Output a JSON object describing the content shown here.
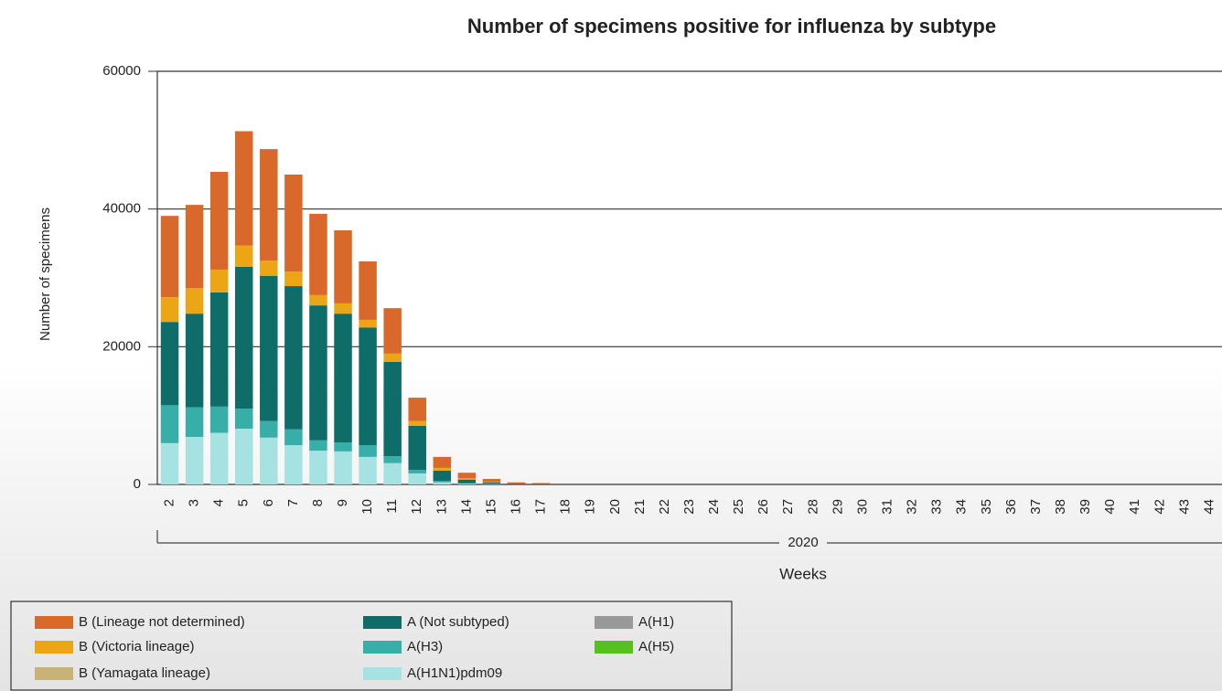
{
  "chart_data": {
    "type": "bar",
    "stacked": true,
    "title": "Number of specimens positive for influenza by subtype",
    "ylabel": "Number of specimens",
    "xlabel": "Weeks",
    "x_group": "2020",
    "categories": [
      "2",
      "3",
      "4",
      "5",
      "6",
      "7",
      "8",
      "9",
      "10",
      "11",
      "12",
      "13",
      "14",
      "15",
      "16",
      "17",
      "18",
      "19",
      "20",
      "21",
      "22",
      "23",
      "24",
      "25",
      "26",
      "27",
      "28",
      "29",
      "30",
      "31",
      "32",
      "33",
      "34",
      "35",
      "36",
      "37",
      "38",
      "39",
      "40",
      "41",
      "42",
      "43",
      "44"
    ],
    "ylim": [
      0,
      60000
    ],
    "yticks": [
      0,
      20000,
      40000,
      60000
    ],
    "grid": true,
    "series": [
      {
        "name": "B (Lineage not determined)",
        "color": "#d8692a",
        "values": [
          11800,
          12100,
          14200,
          16600,
          16200,
          14100,
          11800,
          10600,
          8500,
          6600,
          3400,
          1600,
          800,
          400,
          200,
          150,
          0,
          0,
          0,
          0,
          0,
          0,
          0,
          0,
          0,
          0,
          0,
          0,
          0,
          0,
          0,
          0,
          0,
          0,
          0,
          0,
          0,
          0,
          0,
          0,
          0,
          0,
          0
        ]
      },
      {
        "name": "B (Victoria lineage)",
        "color": "#eba515",
        "values": [
          3600,
          3700,
          3300,
          3100,
          2200,
          2100,
          1500,
          1500,
          1100,
          1200,
          700,
          400,
          200,
          100,
          0,
          0,
          0,
          0,
          0,
          0,
          0,
          0,
          0,
          0,
          0,
          0,
          0,
          0,
          0,
          0,
          0,
          0,
          0,
          0,
          0,
          0,
          0,
          0,
          0,
          0,
          0,
          0,
          0
        ]
      },
      {
        "name": "B (Yamagata lineage)",
        "color": "#c9b374",
        "values": [
          0,
          0,
          0,
          0,
          0,
          0,
          0,
          0,
          0,
          0,
          0,
          0,
          0,
          0,
          0,
          0,
          0,
          0,
          0,
          0,
          0,
          0,
          0,
          0,
          0,
          0,
          0,
          0,
          0,
          0,
          0,
          0,
          0,
          0,
          0,
          0,
          0,
          0,
          0,
          0,
          0,
          0,
          0
        ]
      },
      {
        "name": "A (Not subtyped)",
        "color": "#0e6d69",
        "values": [
          12100,
          13600,
          16600,
          20600,
          21100,
          20800,
          19600,
          18700,
          17100,
          13700,
          6400,
          1500,
          500,
          200,
          100,
          50,
          0,
          0,
          0,
          0,
          0,
          0,
          0,
          0,
          0,
          0,
          0,
          0,
          0,
          0,
          0,
          0,
          0,
          0,
          0,
          0,
          0,
          0,
          0,
          0,
          0,
          0,
          0
        ]
      },
      {
        "name": "A(H3)",
        "color": "#37aea8",
        "values": [
          5500,
          4300,
          3800,
          2900,
          2400,
          2300,
          1500,
          1300,
          1700,
          1000,
          500,
          200,
          100,
          50,
          0,
          0,
          0,
          0,
          0,
          0,
          0,
          0,
          0,
          0,
          0,
          0,
          0,
          0,
          0,
          0,
          0,
          0,
          0,
          0,
          0,
          0,
          0,
          0,
          0,
          0,
          0,
          0,
          0
        ]
      },
      {
        "name": "A(H1N1)pdm09",
        "color": "#a6e2e2",
        "values": [
          6000,
          6900,
          7500,
          8100,
          6800,
          5700,
          4900,
          4800,
          4000,
          3100,
          1600,
          300,
          100,
          50,
          0,
          0,
          0,
          0,
          0,
          0,
          0,
          0,
          0,
          0,
          0,
          0,
          0,
          0,
          0,
          0,
          0,
          0,
          0,
          0,
          0,
          0,
          0,
          0,
          0,
          0,
          0,
          0,
          0
        ]
      },
      {
        "name": "A(H1)",
        "color": "#999999",
        "values": [
          0,
          0,
          0,
          0,
          0,
          0,
          0,
          0,
          0,
          0,
          0,
          0,
          0,
          0,
          0,
          0,
          0,
          0,
          0,
          0,
          0,
          0,
          0,
          0,
          0,
          0,
          0,
          0,
          0,
          0,
          0,
          0,
          0,
          0,
          0,
          0,
          0,
          0,
          0,
          0,
          0,
          0,
          0
        ]
      },
      {
        "name": "A(H5)",
        "color": "#55c020",
        "values": [
          0,
          0,
          0,
          0,
          0,
          0,
          0,
          0,
          0,
          0,
          0,
          0,
          0,
          0,
          0,
          0,
          0,
          0,
          0,
          0,
          0,
          0,
          0,
          0,
          0,
          0,
          0,
          0,
          0,
          0,
          0,
          0,
          0,
          0,
          0,
          0,
          0,
          0,
          0,
          0,
          0,
          0,
          0
        ]
      }
    ]
  }
}
